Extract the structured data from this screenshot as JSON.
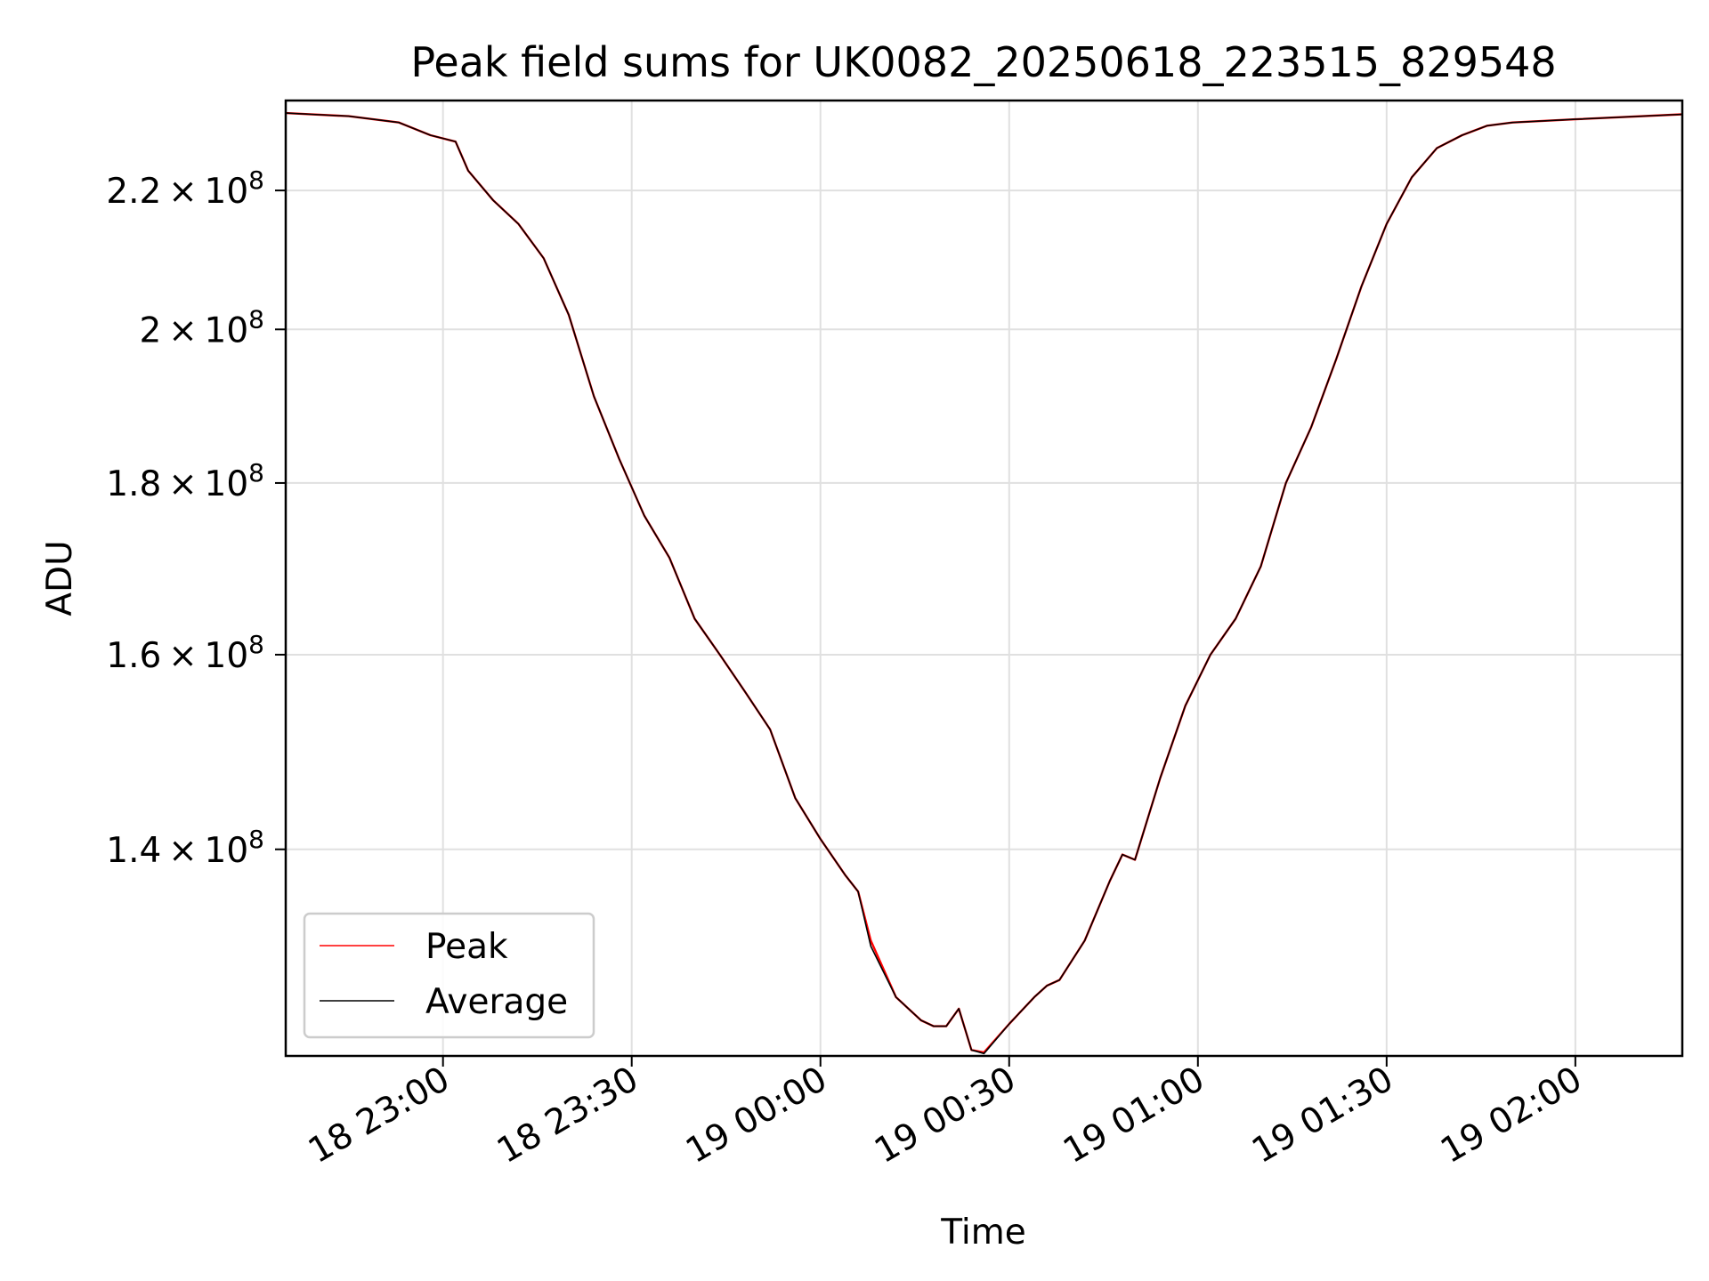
{
  "chart_data": {
    "type": "line",
    "title": "Peak field sums for UK0082_20250618_223515_829548",
    "xlabel": "Time",
    "ylabel": "ADU",
    "yscale": "log",
    "grid": true,
    "legend_position": "lower-left",
    "xlim": [
      "2025-06-18 22:35",
      "2025-06-19 02:17"
    ],
    "ylim": [
      121500000,
      234000000
    ],
    "xticks": [
      {
        "value": "2025-06-18 23:00",
        "label": "18 23:00"
      },
      {
        "value": "2025-06-18 23:30",
        "label": "18 23:30"
      },
      {
        "value": "2025-06-19 00:00",
        "label": "19 00:00"
      },
      {
        "value": "2025-06-19 00:30",
        "label": "19 00:30"
      },
      {
        "value": "2025-06-19 01:00",
        "label": "19 01:00"
      },
      {
        "value": "2025-06-19 01:30",
        "label": "19 01:30"
      },
      {
        "value": "2025-06-19 02:00",
        "label": "19 02:00"
      }
    ],
    "yticks": [
      {
        "value": 140000000,
        "mant": "1.4",
        "exp": "8"
      },
      {
        "value": 160000000,
        "mant": "1.6",
        "exp": "8"
      },
      {
        "value": 180000000,
        "mant": "1.8",
        "exp": "8"
      },
      {
        "value": 200000000,
        "mant": "2",
        "exp": "8"
      },
      {
        "value": 220000000,
        "mant": "2.2",
        "exp": "8"
      }
    ],
    "series": [
      {
        "name": "Peak",
        "color": "#ff0000",
        "x": [
          "2025-06-18 22:35",
          "2025-06-18 22:45",
          "2025-06-18 22:53",
          "2025-06-18 22:58",
          "2025-06-18 23:02",
          "2025-06-18 23:04",
          "2025-06-18 23:08",
          "2025-06-18 23:12",
          "2025-06-18 23:16",
          "2025-06-18 23:20",
          "2025-06-18 23:24",
          "2025-06-18 23:28",
          "2025-06-18 23:32",
          "2025-06-18 23:36",
          "2025-06-18 23:40",
          "2025-06-18 23:44",
          "2025-06-18 23:48",
          "2025-06-18 23:52",
          "2025-06-18 23:56",
          "2025-06-19 00:00",
          "2025-06-19 00:04",
          "2025-06-19 00:06",
          "2025-06-19 00:08",
          "2025-06-19 00:12",
          "2025-06-19 00:16",
          "2025-06-19 00:18",
          "2025-06-19 00:20",
          "2025-06-19 00:22",
          "2025-06-19 00:24",
          "2025-06-19 00:26",
          "2025-06-19 00:30",
          "2025-06-19 00:34",
          "2025-06-19 00:36",
          "2025-06-19 00:38",
          "2025-06-19 00:42",
          "2025-06-19 00:46",
          "2025-06-19 00:48",
          "2025-06-19 00:50",
          "2025-06-19 00:54",
          "2025-06-19 00:58",
          "2025-06-19 01:02",
          "2025-06-19 01:06",
          "2025-06-19 01:10",
          "2025-06-19 01:14",
          "2025-06-19 01:18",
          "2025-06-19 01:22",
          "2025-06-19 01:26",
          "2025-06-19 01:30",
          "2025-06-19 01:34",
          "2025-06-19 01:38",
          "2025-06-19 01:42",
          "2025-06-19 01:46",
          "2025-06-19 01:50",
          "2025-06-19 02:00",
          "2025-06-19 02:17"
        ],
        "values": [
          232000000,
          231500000,
          230500000,
          228500000,
          227500000,
          223000000,
          218500000,
          215000000,
          210000000,
          202000000,
          191000000,
          183000000,
          176000000,
          171000000,
          164000000,
          160000000,
          156000000,
          152000000,
          145000000,
          141000000,
          137500000,
          136000000,
          131500000,
          126500000,
          124500000,
          124000000,
          124000000,
          125500000,
          122000000,
          121800000,
          124200000,
          126500000,
          127500000,
          128000000,
          131500000,
          137000000,
          139500000,
          139000000,
          147000000,
          154500000,
          160000000,
          164000000,
          170000000,
          180000000,
          187000000,
          196000000,
          206000000,
          215000000,
          222000000,
          226500000,
          228500000,
          230000000,
          230500000,
          231000000,
          231800000
        ]
      },
      {
        "name": "Average",
        "color": "#000000",
        "x": [
          "2025-06-18 22:35",
          "2025-06-18 22:45",
          "2025-06-18 22:53",
          "2025-06-18 22:58",
          "2025-06-18 23:02",
          "2025-06-18 23:04",
          "2025-06-18 23:08",
          "2025-06-18 23:12",
          "2025-06-18 23:16",
          "2025-06-18 23:20",
          "2025-06-18 23:24",
          "2025-06-18 23:28",
          "2025-06-18 23:32",
          "2025-06-18 23:36",
          "2025-06-18 23:40",
          "2025-06-18 23:44",
          "2025-06-18 23:48",
          "2025-06-18 23:52",
          "2025-06-18 23:56",
          "2025-06-19 00:00",
          "2025-06-19 00:04",
          "2025-06-19 00:06",
          "2025-06-19 00:08",
          "2025-06-19 00:12",
          "2025-06-19 00:16",
          "2025-06-19 00:18",
          "2025-06-19 00:20",
          "2025-06-19 00:22",
          "2025-06-19 00:24",
          "2025-06-19 00:26",
          "2025-06-19 00:30",
          "2025-06-19 00:34",
          "2025-06-19 00:36",
          "2025-06-19 00:38",
          "2025-06-19 00:42",
          "2025-06-19 00:46",
          "2025-06-19 00:48",
          "2025-06-19 00:50",
          "2025-06-19 00:54",
          "2025-06-19 00:58",
          "2025-06-19 01:02",
          "2025-06-19 01:06",
          "2025-06-19 01:10",
          "2025-06-19 01:14",
          "2025-06-19 01:18",
          "2025-06-19 01:22",
          "2025-06-19 01:26",
          "2025-06-19 01:30",
          "2025-06-19 01:34",
          "2025-06-19 01:38",
          "2025-06-19 01:42",
          "2025-06-19 01:46",
          "2025-06-19 01:50",
          "2025-06-19 02:00",
          "2025-06-19 02:17"
        ],
        "values": [
          232000000,
          231500000,
          230500000,
          228500000,
          227500000,
          223000000,
          218500000,
          215000000,
          210000000,
          202000000,
          191000000,
          183000000,
          176000000,
          171000000,
          164000000,
          160000000,
          156000000,
          152000000,
          145000000,
          141000000,
          137500000,
          136000000,
          131000000,
          126500000,
          124500000,
          124000000,
          124000000,
          125500000,
          122000000,
          121700000,
          124200000,
          126500000,
          127500000,
          128000000,
          131500000,
          137000000,
          139500000,
          139000000,
          147000000,
          154500000,
          160000000,
          164000000,
          170000000,
          180000000,
          187000000,
          196000000,
          206000000,
          215000000,
          222000000,
          226500000,
          228500000,
          230000000,
          230500000,
          231000000,
          231800000
        ]
      }
    ]
  }
}
